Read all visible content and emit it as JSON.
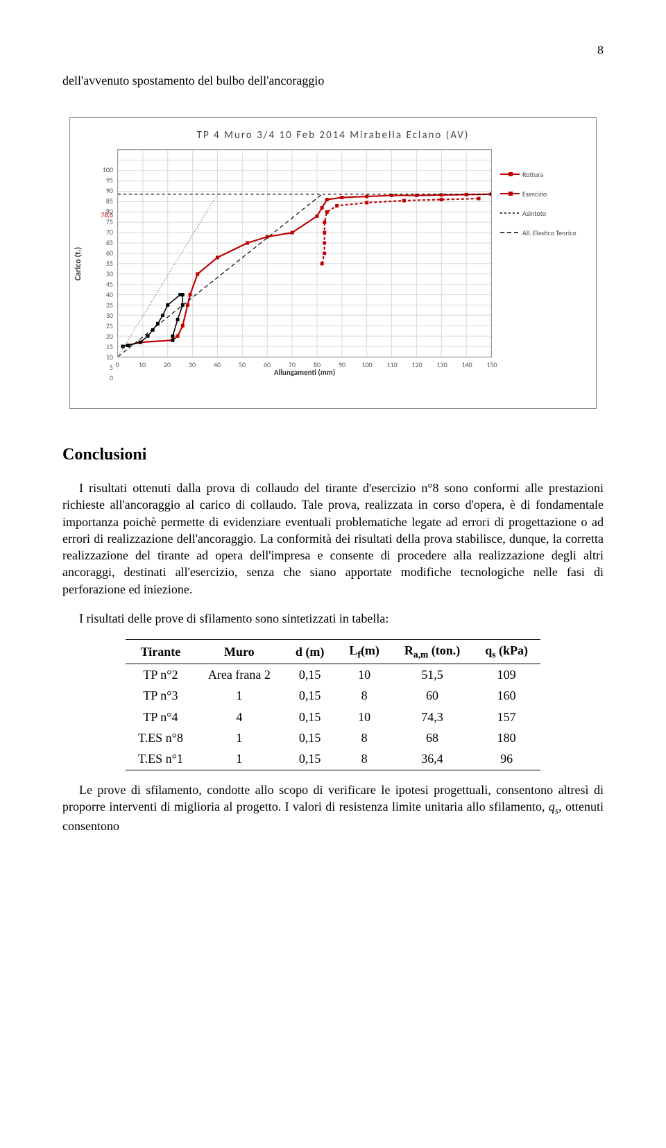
{
  "page_number": "8",
  "opening_line": "dell'avvenuto spostamento del bulbo dell'ancoraggio",
  "chart": {
    "type": "line-scatter",
    "title": "TP 4 Muro 3/4        10 Feb 2014 Mirabella Eclano (AV)",
    "ylabel": "Carico (t.)",
    "xlabel": "Allungamenti (mm)",
    "xlim": [
      0,
      150
    ],
    "ylim": [
      0,
      100
    ],
    "xticks": [
      0,
      10,
      20,
      30,
      40,
      50,
      60,
      70,
      80,
      90,
      100,
      110,
      120,
      130,
      140,
      150
    ],
    "yticks": [
      0,
      5,
      10,
      15,
      20,
      25,
      30,
      35,
      40,
      45,
      50,
      55,
      60,
      65,
      70,
      75,
      80,
      85,
      90,
      95,
      100
    ],
    "ytick_extra": {
      "value": 78.6,
      "color": "#c00000",
      "label": "78,6"
    },
    "grid_color": "#d9d9d9",
    "background_color": "#ffffff",
    "series": [
      {
        "name": "Rottura",
        "color": "#c00000",
        "marker": "square",
        "line_width": 2.2,
        "points": [
          [
            2,
            5
          ],
          [
            9,
            7
          ],
          [
            22,
            8
          ],
          [
            24,
            10
          ],
          [
            26,
            15
          ],
          [
            28,
            25
          ],
          [
            29,
            30
          ],
          [
            32,
            40
          ],
          [
            40,
            48
          ],
          [
            52,
            55
          ],
          [
            60,
            58
          ],
          [
            70,
            60
          ],
          [
            80,
            68
          ],
          [
            82,
            72
          ],
          [
            84,
            76
          ],
          [
            90,
            77
          ],
          [
            100,
            77.5
          ],
          [
            110,
            78
          ],
          [
            120,
            78
          ],
          [
            130,
            78.2
          ],
          [
            140,
            78.4
          ],
          [
            150,
            78.6
          ]
        ]
      },
      {
        "name": "Esercizio",
        "color": "#c00000",
        "marker": "square",
        "line_width": 2.2,
        "dash": "4,3",
        "points": [
          [
            82,
            45
          ],
          [
            83,
            50
          ],
          [
            83,
            55
          ],
          [
            83,
            60
          ],
          [
            83,
            65
          ],
          [
            84,
            70
          ],
          [
            88,
            73
          ],
          [
            100,
            74.5
          ],
          [
            115,
            75.5
          ],
          [
            130,
            76
          ],
          [
            145,
            76.5
          ]
        ]
      },
      {
        "name": "Loop",
        "color": "#000000",
        "marker": "square",
        "line_width": 1.6,
        "points": [
          [
            2,
            5
          ],
          [
            4,
            5.5
          ],
          [
            9,
            7
          ],
          [
            12,
            10
          ],
          [
            14,
            13
          ],
          [
            16,
            16
          ],
          [
            18,
            20
          ],
          [
            20,
            25
          ],
          [
            25,
            30
          ],
          [
            26,
            30
          ],
          [
            26,
            25
          ],
          [
            24,
            18
          ],
          [
            22,
            10
          ],
          [
            22,
            8
          ]
        ]
      },
      {
        "name": "Asintoto",
        "color": "#000000",
        "dash": "4,4",
        "line_width": 1.2,
        "points": [
          [
            0,
            78.6
          ],
          [
            150,
            78.6
          ]
        ]
      },
      {
        "name": "All. Elastico Teorico",
        "color": "#000000",
        "dash": "6,4",
        "line_width": 1.2,
        "points": [
          [
            0,
            0
          ],
          [
            82,
            78.6
          ]
        ]
      },
      {
        "name": "Guide1",
        "color": "#888888",
        "dash": "2,2",
        "line_width": 1,
        "points": [
          [
            0,
            0
          ],
          [
            40,
            78.6
          ]
        ]
      }
    ],
    "legend": [
      {
        "label": "Rottura",
        "style": "line-marker",
        "color": "#c00000"
      },
      {
        "label": "Esercizio",
        "style": "line-marker",
        "color": "#c00000"
      },
      {
        "label": "Asintoto",
        "style": "dash",
        "color": "#000000"
      },
      {
        "label": "All. Elastico Teorico",
        "style": "dash-sparse",
        "color": "#000000"
      }
    ]
  },
  "conclusions_heading": "Conclusioni",
  "paragraph1": "I risultati ottenuti dalla prova di collaudo del tirante d'esercizio n°8 sono conformi alle prestazioni richieste all'ancoraggio al carico di collaudo. Tale prova, realizzata in corso d'opera, è di fondamentale importanza poichè permette di evidenziare eventuali problematiche legate ad errori di progettazione o ad errori di realizzazione dell'ancoraggio. La conformità dei risultati della prova stabilisce, dunque, la corretta realizzazione del tirante ad opera dell'impresa e consente di procedere alla realizzazione degli altri ancoraggi, destinati all'esercizio, senza che siano apportate modifiche tecnologiche nelle fasi di perforazione ed iniezione.",
  "paragraph2": "I risultati delle prove di sfilamento sono sintetizzati in tabella:",
  "table": {
    "columns": [
      "Tirante",
      "Muro",
      "d (m)",
      "L_f(m)",
      "R_a,m (ton.)",
      "q_s (kPa)"
    ],
    "rows": [
      [
        "TP n°2",
        "Area frana 2",
        "0,15",
        "10",
        "51,5",
        "109"
      ],
      [
        "TP n°3",
        "1",
        "0,15",
        "8",
        "60",
        "160"
      ],
      [
        "TP n°4",
        "4",
        "0,15",
        "10",
        "74,3",
        "157"
      ],
      [
        "T.ES n°8",
        "1",
        "0,15",
        "8",
        "68",
        "180"
      ],
      [
        "T.ES n°1",
        "1",
        "0,15",
        "8",
        "36,4",
        "96"
      ]
    ]
  },
  "paragraph3a": "Le prove di sfilamento, condotte allo scopo di verificare le ipotesi progettuali, consentono altresì di proporre interventi di miglioria al progetto. I valori di resistenza limite unitaria allo sfilamento, ",
  "paragraph3_q": "q",
  "paragraph3_s": "s",
  "paragraph3b": ", ottenuti consentono"
}
